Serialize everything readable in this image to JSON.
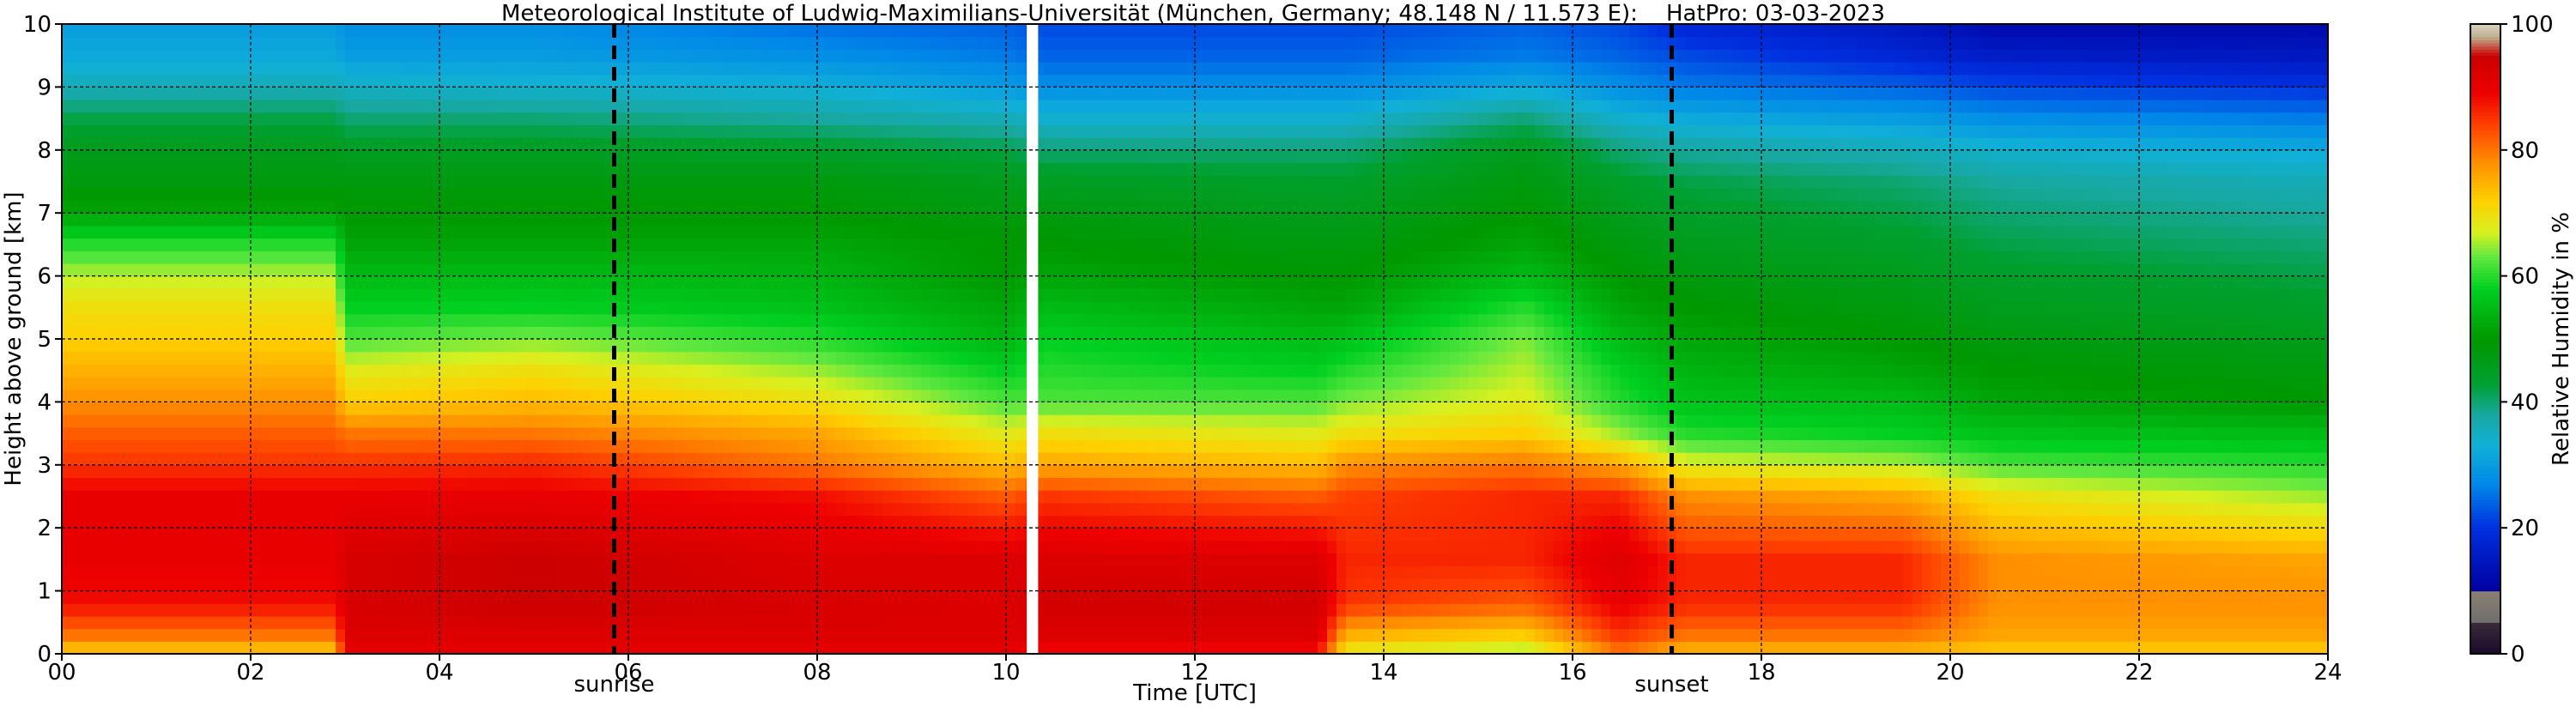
{
  "chart_data": {
    "type": "heatmap",
    "title": "Meteorological Institute of Ludwig-Maximilians-Universität (München, Germany; 48.148 N / 11.573 E):    HatPro: 03-03-2023",
    "xlabel": "Time [UTC]",
    "ylabel": "Height above ground [km]",
    "colorbar_label": "Relative Humidity in %",
    "xlim": [
      0,
      24
    ],
    "ylim": [
      0,
      10
    ],
    "x_ticks": [
      0,
      2,
      4,
      6,
      8,
      10,
      12,
      14,
      16,
      18,
      20,
      22,
      24
    ],
    "x_tick_labels": [
      "00",
      "02",
      "04",
      "06",
      "08",
      "10",
      "12",
      "14",
      "16",
      "18",
      "20",
      "22",
      "24"
    ],
    "y_ticks": [
      0,
      1,
      2,
      3,
      4,
      5,
      6,
      7,
      8,
      9,
      10
    ],
    "y_tick_labels": [
      "0",
      "1",
      "2",
      "3",
      "4",
      "5",
      "6",
      "7",
      "8",
      "9",
      "10"
    ],
    "colorbar_ticks": [
      0,
      20,
      40,
      60,
      80,
      100
    ],
    "colorbar_tick_labels": [
      "0",
      "20",
      "40",
      "60",
      "80",
      "100"
    ],
    "grid": true,
    "data_gap": [
      10.22,
      10.34
    ],
    "events": [
      {
        "label": "sunrise",
        "time": 5.85
      },
      {
        "label": "sunset",
        "time": 17.05
      }
    ],
    "rh_anchor_heights_km": [
      0,
      0.3,
      0.8,
      1.5,
      2.5,
      3.0,
      3.5,
      4.0,
      4.5,
      5.0,
      5.5,
      6.0,
      6.5,
      7.0,
      7.5,
      8.0,
      8.5,
      9.0,
      9.5,
      10.0
    ],
    "rh_profiles": [
      {
        "time": 0.0,
        "rh": [
          72,
          80,
          88,
          90,
          90,
          85,
          82,
          78,
          75,
          72,
          70,
          66,
          60,
          52,
          48,
          46,
          42,
          36,
          32,
          30
        ]
      },
      {
        "time": 2.9,
        "rh": [
          72,
          80,
          88,
          90,
          90,
          85,
          82,
          78,
          75,
          72,
          70,
          66,
          60,
          52,
          48,
          46,
          42,
          36,
          32,
          30
        ]
      },
      {
        "time": 3.0,
        "rh": [
          90,
          92,
          93,
          93,
          90,
          85,
          80,
          72,
          68,
          62,
          58,
          55,
          52,
          50,
          48,
          45,
          40,
          35,
          30,
          28
        ]
      },
      {
        "time": 5.0,
        "rh": [
          90,
          92,
          95,
          95,
          90,
          86,
          80,
          74,
          70,
          64,
          58,
          55,
          52,
          50,
          48,
          45,
          40,
          34,
          30,
          28
        ]
      },
      {
        "time": 8.0,
        "rh": [
          90,
          92,
          93,
          92,
          88,
          80,
          76,
          70,
          65,
          60,
          56,
          54,
          52,
          50,
          48,
          44,
          38,
          33,
          28,
          25
        ]
      },
      {
        "time": 10.0,
        "rh": [
          90,
          92,
          92,
          92,
          82,
          74,
          68,
          62,
          58,
          54,
          52,
          50,
          50,
          48,
          46,
          42,
          36,
          30,
          26,
          24
        ]
      },
      {
        "time": 10.4,
        "rh": [
          88,
          92,
          94,
          92,
          85,
          76,
          70,
          62,
          60,
          58,
          55,
          52,
          50,
          48,
          45,
          40,
          34,
          28,
          24,
          22
        ]
      },
      {
        "time": 13.3,
        "rh": [
          88,
          92,
          94,
          92,
          82,
          74,
          68,
          62,
          58,
          55,
          52,
          50,
          48,
          46,
          44,
          40,
          34,
          28,
          24,
          22
        ]
      },
      {
        "time": 13.6,
        "rh": [
          68,
          75,
          85,
          86,
          84,
          78,
          70,
          64,
          60,
          56,
          52,
          50,
          48,
          46,
          44,
          40,
          34,
          28,
          24,
          22
        ]
      },
      {
        "time": 15.5,
        "rh": [
          64,
          72,
          82,
          86,
          86,
          80,
          72,
          68,
          66,
          64,
          60,
          55,
          52,
          50,
          48,
          46,
          40,
          32,
          26,
          24
        ]
      },
      {
        "time": 16.5,
        "rh": [
          80,
          85,
          90,
          92,
          86,
          76,
          65,
          60,
          58,
          55,
          52,
          50,
          48,
          46,
          44,
          40,
          34,
          28,
          24,
          22
        ]
      },
      {
        "time": 17.2,
        "rh": [
          74,
          80,
          86,
          86,
          78,
          68,
          60,
          56,
          54,
          52,
          50,
          48,
          46,
          44,
          42,
          38,
          32,
          26,
          22,
          18
        ]
      },
      {
        "time": 19.5,
        "rh": [
          74,
          80,
          86,
          86,
          76,
          66,
          58,
          55,
          52,
          50,
          48,
          46,
          44,
          42,
          40,
          36,
          30,
          24,
          18,
          15
        ]
      },
      {
        "time": 20.5,
        "rh": [
          72,
          76,
          78,
          78,
          70,
          62,
          56,
          52,
          50,
          48,
          46,
          44,
          42,
          40,
          38,
          34,
          28,
          22,
          16,
          12
        ]
      },
      {
        "time": 24.0,
        "rh": [
          72,
          76,
          78,
          76,
          65,
          60,
          55,
          50,
          48,
          46,
          44,
          42,
          40,
          38,
          36,
          32,
          26,
          20,
          15,
          12
        ]
      }
    ],
    "colormap": [
      {
        "rh": 0,
        "color": "#1a0a2a"
      },
      {
        "rh": 5,
        "color": "#3a2a3a"
      },
      {
        "rh": 5.01,
        "color": "#6e6e6e"
      },
      {
        "rh": 10,
        "color": "#8a8070"
      },
      {
        "rh": 10.01,
        "color": "#0000a0"
      },
      {
        "rh": 20,
        "color": "#0030e0"
      },
      {
        "rh": 27,
        "color": "#0088e8"
      },
      {
        "rh": 33,
        "color": "#10b0d8"
      },
      {
        "rh": 38,
        "color": "#18a8a0"
      },
      {
        "rh": 43,
        "color": "#00a030"
      },
      {
        "rh": 50,
        "color": "#009800"
      },
      {
        "rh": 58,
        "color": "#00d020"
      },
      {
        "rh": 63,
        "color": "#60e840"
      },
      {
        "rh": 67,
        "color": "#d8f020"
      },
      {
        "rh": 72,
        "color": "#ffd000"
      },
      {
        "rh": 78,
        "color": "#ff9000"
      },
      {
        "rh": 84,
        "color": "#ff4000"
      },
      {
        "rh": 89,
        "color": "#ee0000"
      },
      {
        "rh": 95,
        "color": "#cc0000"
      },
      {
        "rh": 98,
        "color": "#c0b090"
      },
      {
        "rh": 100,
        "color": "#d8d0c0"
      }
    ]
  }
}
